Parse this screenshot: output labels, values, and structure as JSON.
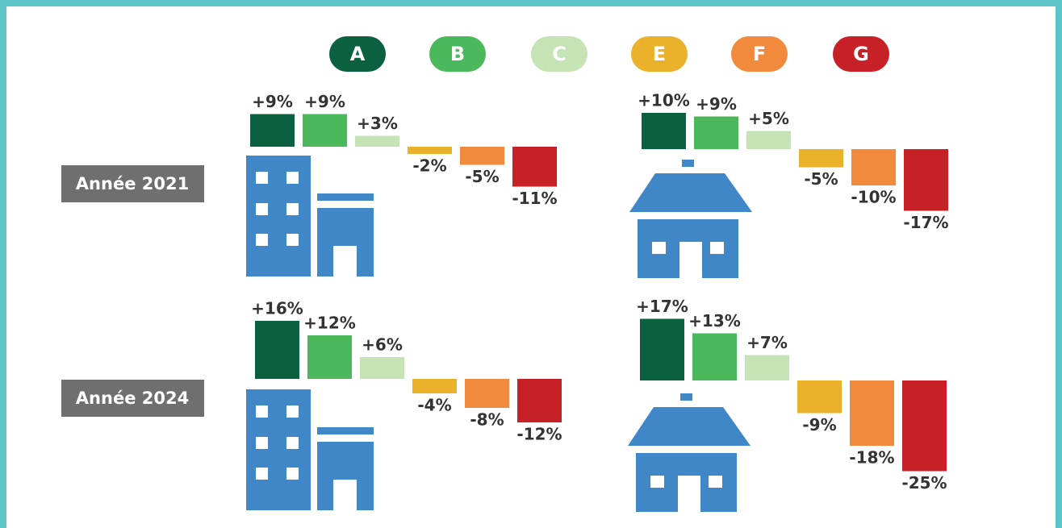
{
  "legend": [
    {
      "name": "A",
      "color": "#0b6040"
    },
    {
      "name": "B",
      "color": "#4cb85c"
    },
    {
      "name": "C",
      "color": "#c5e3b5"
    },
    {
      "name": "E",
      "color": "#e9b22a"
    },
    {
      "name": "F",
      "color": "#f28a3e"
    },
    {
      "name": "G",
      "color": "#c52127"
    }
  ],
  "row_labels": [
    "Année 2021",
    "Année 2024"
  ],
  "chart_data": [
    {
      "type": "bar",
      "values": [
        9,
        9,
        3,
        -2,
        -5,
        -11
      ],
      "value_labels": [
        "+9%",
        "+9%",
        "+3%",
        "-2%",
        "-5%",
        "-11%"
      ]
    },
    {
      "type": "bar",
      "values": [
        10,
        9,
        5,
        -5,
        -10,
        -17
      ],
      "value_labels": [
        "+10%",
        "+9%",
        "+5%",
        "-5%",
        "-10%",
        "-17%"
      ]
    },
    {
      "type": "bar",
      "values": [
        16,
        12,
        6,
        -4,
        -8,
        -12
      ],
      "value_labels": [
        "+16%",
        "+12%",
        "+6%",
        "-4%",
        "-8%",
        "-12%"
      ]
    },
    {
      "type": "bar",
      "values": [
        17,
        13,
        7,
        -9,
        -18,
        -25
      ],
      "value_labels": [
        "+17%",
        "+13%",
        "+7%",
        "-9%",
        "-18%",
        "-25%"
      ]
    }
  ]
}
